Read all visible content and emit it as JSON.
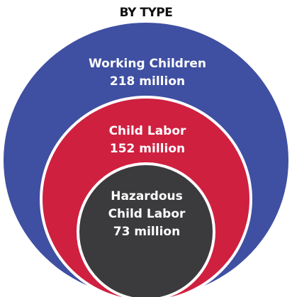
{
  "title": "BY TYPE",
  "colors": {
    "outer": "#3f4fa2",
    "middle": "#cf2040",
    "inner": "#3b3b3d",
    "separator": "#ffffff"
  },
  "circles": [
    {
      "label_line1": "Working Children",
      "label_line2": "218 million"
    },
    {
      "label_line1": "Child Labor",
      "label_line2": "152 million"
    },
    {
      "label_line1": "Hazardous",
      "label_line2": "Child Labor",
      "label_line3": "73 million"
    }
  ]
}
